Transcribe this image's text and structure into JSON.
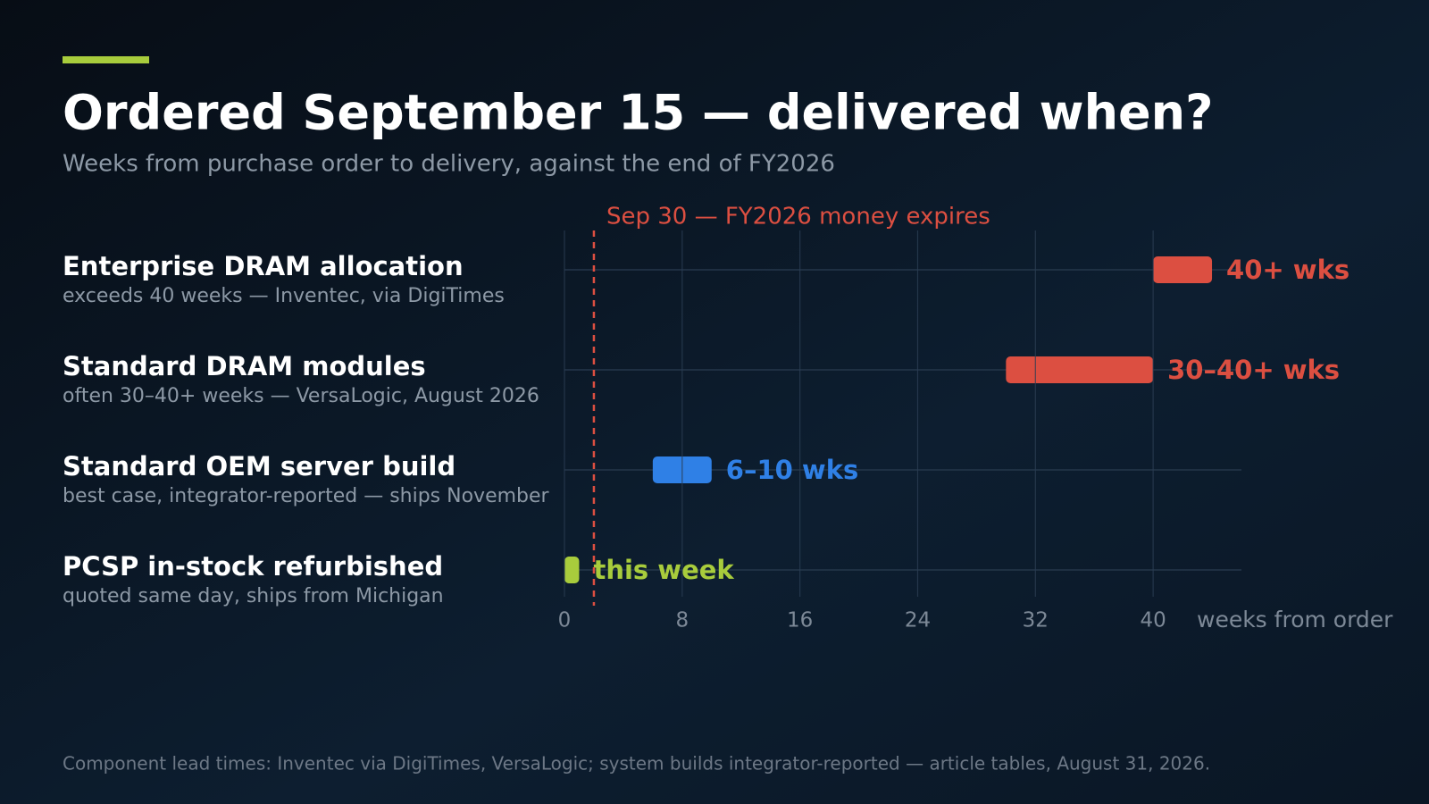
{
  "chart_data": {
    "type": "range-bar",
    "title": "Ordered September 15 — delivered when?",
    "subtitle": "Weeks from purchase order to delivery, against the end of FY2026",
    "categories": [
      "Enterprise DRAM allocation",
      "Standard DRAM modules",
      "Standard OEM server build",
      "PCSP in-stock refurbished"
    ],
    "category_notes": [
      "exceeds 40 weeks — Inventec, via DigiTimes",
      "often 30–40+ weeks — VersaLogic, August 2026",
      "best case, integrator-reported — ships November",
      "quoted same day, ships from Michigan"
    ],
    "starts": [
      40,
      30,
      6,
      0
    ],
    "ends": [
      44,
      40,
      10,
      1
    ],
    "value_labels": [
      "40+ wks",
      "30–40+ wks",
      "6–10 wks",
      "this week"
    ],
    "colors": [
      "#dc4f41",
      "#dc4f41",
      "#2f80e6",
      "#a8cc3c"
    ],
    "xlim": [
      0,
      46
    ],
    "xticks": [
      0,
      8,
      16,
      24,
      32,
      40
    ],
    "xlabel": "weeks from order",
    "grid": true,
    "annotation": {
      "label": "Sep 30 — FY2026 money expires",
      "value": 2,
      "color": "#dc4f41"
    },
    "source": "Component lead times: Inventec via DigiTimes, VersaLogic; system builds integrator-reported — article tables, August 31, 2026."
  }
}
